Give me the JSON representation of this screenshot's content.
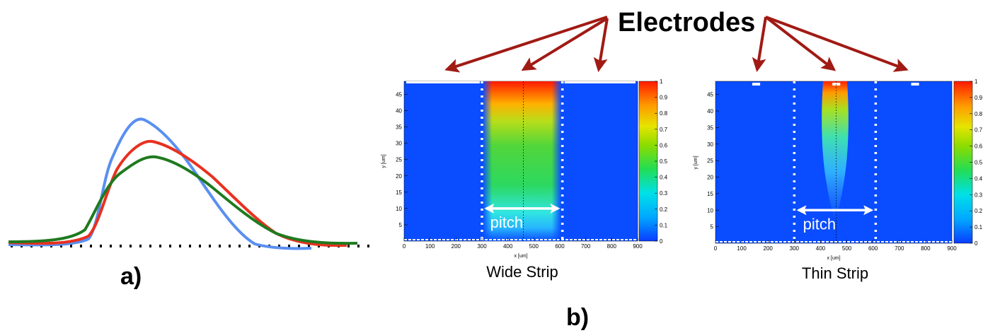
{
  "panel_a": {
    "label": "a)",
    "curves": [
      {
        "color": "#e8311f"
      },
      {
        "color": "#5a8ff0"
      },
      {
        "color": "#1f7a1f"
      }
    ]
  },
  "panel_b": {
    "label": "b)",
    "title": "Electrodes",
    "pitch_label": "pitch",
    "colors": {
      "arrow": "#a11a14",
      "electrode": "#ffffff",
      "field_bg": "#0a4cff"
    },
    "plots": [
      {
        "caption": "Wide Strip",
        "strip": "wide",
        "xlabel": "x [um]",
        "ylabel": "y [um]",
        "x_ticks": [
          "0",
          "100",
          "200",
          "300",
          "400",
          "500",
          "600",
          "700",
          "800",
          "900"
        ],
        "y_ticks": [
          "5",
          "10",
          "15",
          "20",
          "25",
          "30",
          "35",
          "40",
          "45"
        ],
        "z_ticks": [
          "0",
          "0.1",
          "0.2",
          "0.3",
          "0.4",
          "0.5",
          "0.6",
          "0.7",
          "0.8",
          "0.9",
          "1"
        ],
        "xlim": [
          0,
          900
        ],
        "ylim": [
          0,
          49
        ],
        "zlim": [
          0,
          1
        ],
        "electrodes_x": [
          [
            0,
            300
          ],
          [
            300,
            610
          ],
          [
            610,
            900
          ]
        ],
        "pitch_bounds_x": [
          300,
          610
        ],
        "center_x": 460
      },
      {
        "caption": "Thin Strip",
        "strip": "thin",
        "xlabel": "x [um]",
        "ylabel": "y [um]",
        "x_ticks": [
          "0",
          "100",
          "200",
          "300",
          "400",
          "500",
          "600",
          "700",
          "800",
          "900"
        ],
        "y_ticks": [
          "5",
          "10",
          "15",
          "20",
          "25",
          "30",
          "35",
          "40",
          "45"
        ],
        "z_ticks": [
          "0",
          "0.1",
          "0.2",
          "0.3",
          "0.4",
          "0.5",
          "0.6",
          "0.7",
          "0.8",
          "0.9",
          "1"
        ],
        "xlim": [
          0,
          900
        ],
        "ylim": [
          0,
          49
        ],
        "zlim": [
          0,
          1
        ],
        "electrodes_x": [
          [
            140,
            170
          ],
          [
            445,
            475
          ],
          [
            745,
            775
          ]
        ],
        "pitch_bounds_x": [
          300,
          610
        ],
        "center_x": 460
      }
    ]
  }
}
